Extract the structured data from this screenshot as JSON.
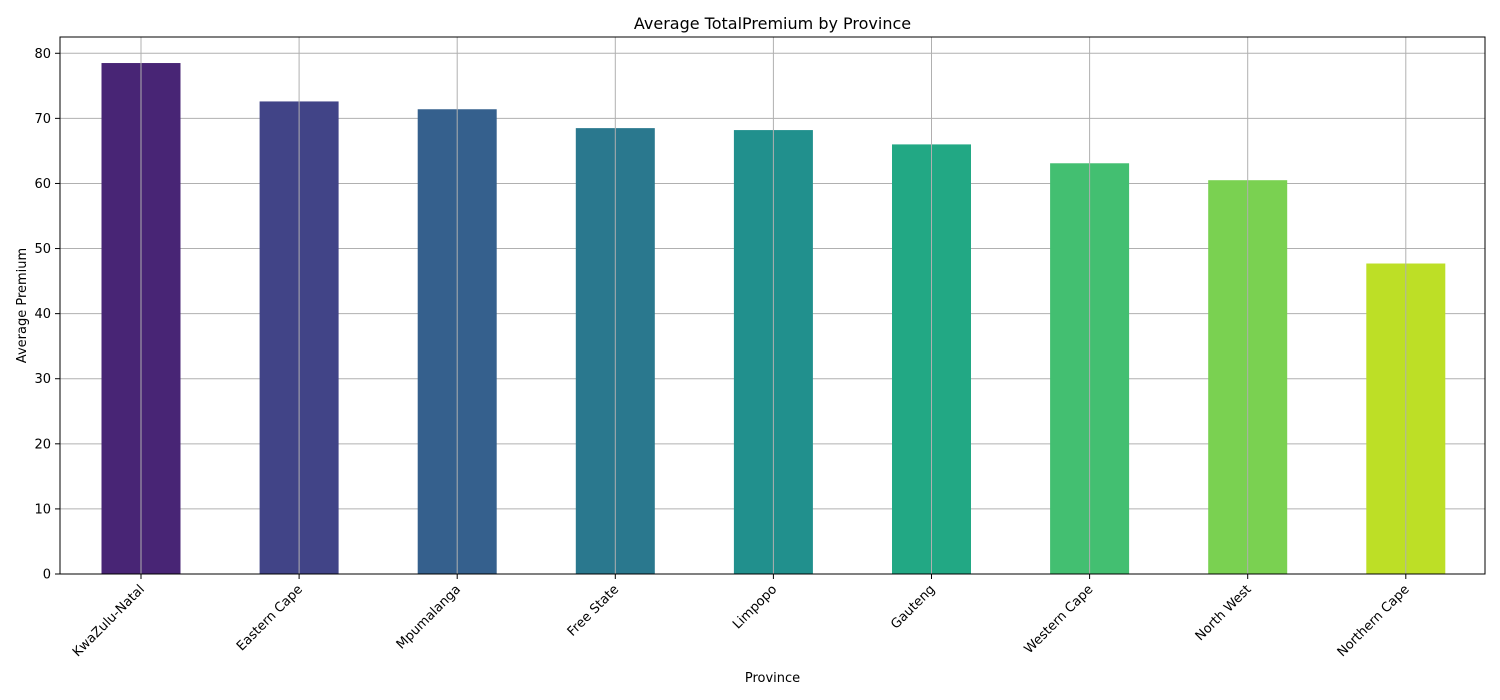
{
  "chart_data": {
    "type": "bar",
    "title": "Average TotalPremium by Province",
    "xlabel": "Province",
    "ylabel": "Average Premium",
    "categories": [
      "KwaZulu-Natal",
      "Eastern Cape",
      "Mpumalanga",
      "Free State",
      "Limpopo",
      "Gauteng",
      "Western Cape",
      "North West",
      "Northern Cape"
    ],
    "values": [
      78.5,
      72.6,
      71.4,
      68.5,
      68.2,
      66.0,
      63.1,
      60.5,
      47.7
    ],
    "colors": [
      "#482575",
      "#414487",
      "#35608d",
      "#2a788e",
      "#21908d",
      "#22a884",
      "#43bf71",
      "#7ad151",
      "#bddf26"
    ],
    "ylim": [
      0,
      82.5
    ],
    "yticks": [
      0,
      10,
      20,
      30,
      40,
      50,
      60,
      70,
      80
    ],
    "grid": true,
    "legend": "none"
  }
}
